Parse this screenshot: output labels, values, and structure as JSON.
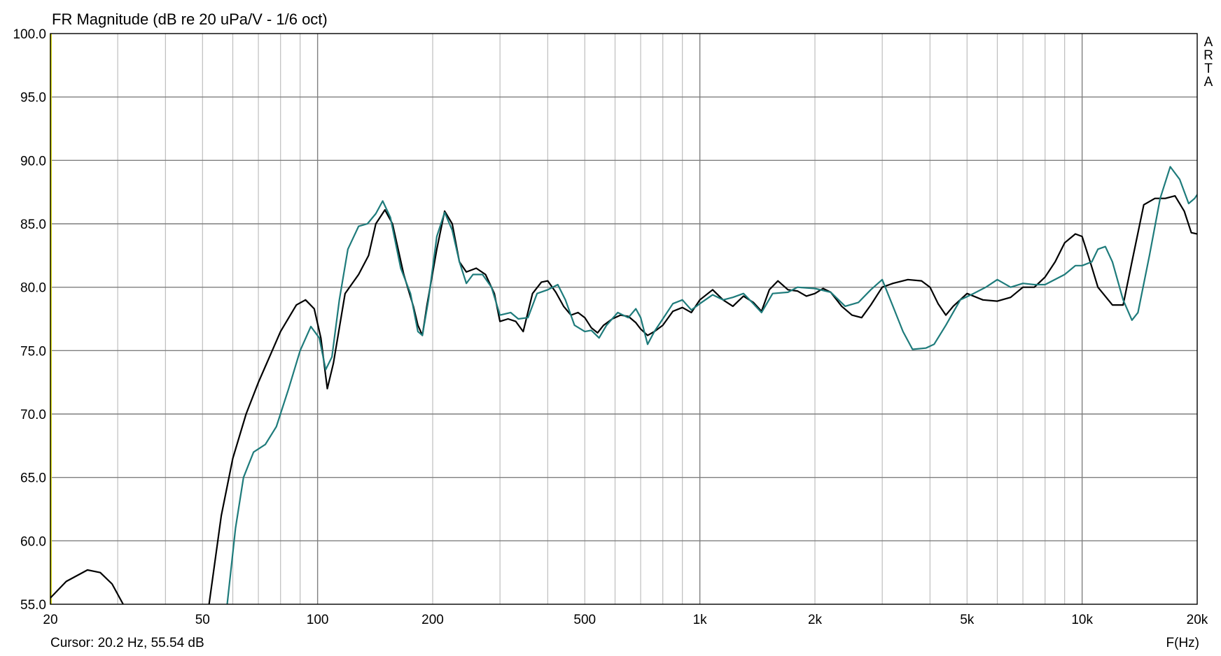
{
  "chart_data": {
    "type": "line",
    "title": "FR Magnitude (dB re 20 uPa/V - 1/6 oct)",
    "xlabel": "F(Hz)",
    "ylabel": "",
    "x_scale": "log",
    "xlim": [
      20,
      20000
    ],
    "ylim": [
      55,
      100
    ],
    "grid": true,
    "brand_letters": [
      "A",
      "R",
      "T",
      "A"
    ],
    "cursor_readout": "Cursor: 20.2 Hz, 55.54 dB",
    "x_ticks": [
      {
        "value": 20,
        "label": "20"
      },
      {
        "value": 50,
        "label": "50"
      },
      {
        "value": 100,
        "label": "100"
      },
      {
        "value": 200,
        "label": "200"
      },
      {
        "value": 500,
        "label": "500"
      },
      {
        "value": 1000,
        "label": "1k"
      },
      {
        "value": 2000,
        "label": "2k"
      },
      {
        "value": 5000,
        "label": "5k"
      },
      {
        "value": 10000,
        "label": "10k"
      },
      {
        "value": 20000,
        "label": "20k"
      }
    ],
    "y_ticks": [
      {
        "value": 100,
        "label": "100.0"
      },
      {
        "value": 95,
        "label": "95.0"
      },
      {
        "value": 90,
        "label": "90.0"
      },
      {
        "value": 85,
        "label": "85.0"
      },
      {
        "value": 80,
        "label": "80.0"
      },
      {
        "value": 75,
        "label": "75.0"
      },
      {
        "value": 70,
        "label": "70.0"
      },
      {
        "value": 65,
        "label": "65.0"
      },
      {
        "value": 60,
        "label": "60.0"
      },
      {
        "value": 55,
        "label": "55.0"
      }
    ],
    "series": [
      {
        "color": "#000000",
        "segments": [
          [
            [
              20,
              55.5
            ],
            [
              22,
              56.8
            ],
            [
              25,
              57.7
            ],
            [
              27,
              57.5
            ],
            [
              29,
              56.6
            ],
            [
              31,
              55.0
            ]
          ],
          [
            [
              52,
              55.0
            ],
            [
              56,
              62.0
            ],
            [
              60,
              66.5
            ],
            [
              65,
              70.0
            ],
            [
              70,
              72.5
            ],
            [
              80,
              76.5
            ],
            [
              88,
              78.6
            ],
            [
              93,
              79.0
            ],
            [
              98,
              78.3
            ],
            [
              102,
              76.0
            ],
            [
              106,
              72.0
            ],
            [
              110,
              74.0
            ],
            [
              118,
              79.5
            ],
            [
              128,
              81.0
            ],
            [
              136,
              82.5
            ],
            [
              142,
              85.0
            ],
            [
              150,
              86.1
            ],
            [
              157,
              85.0
            ],
            [
              168,
              81.0
            ],
            [
              178,
              78.5
            ],
            [
              183,
              77.0
            ],
            [
              188,
              76.2
            ],
            [
              193,
              78.5
            ],
            [
              205,
              83.0
            ],
            [
              215,
              86.0
            ],
            [
              225,
              85.0
            ],
            [
              235,
              82.0
            ],
            [
              245,
              81.2
            ],
            [
              260,
              81.5
            ],
            [
              275,
              81.0
            ],
            [
              290,
              79.5
            ],
            [
              300,
              77.3
            ],
            [
              315,
              77.5
            ],
            [
              330,
              77.3
            ],
            [
              345,
              76.5
            ],
            [
              365,
              79.5
            ],
            [
              385,
              80.4
            ],
            [
              400,
              80.5
            ],
            [
              420,
              79.6
            ],
            [
              440,
              78.5
            ],
            [
              460,
              77.8
            ],
            [
              480,
              78.0
            ],
            [
              500,
              77.6
            ],
            [
              520,
              76.8
            ],
            [
              540,
              76.4
            ],
            [
              560,
              77.0
            ],
            [
              590,
              77.5
            ],
            [
              620,
              77.8
            ],
            [
              650,
              77.7
            ],
            [
              680,
              77.2
            ],
            [
              700,
              76.7
            ],
            [
              730,
              76.2
            ],
            [
              760,
              76.5
            ],
            [
              800,
              77.0
            ],
            [
              850,
              78.1
            ],
            [
              900,
              78.4
            ],
            [
              950,
              78.0
            ],
            [
              1000,
              79.0
            ],
            [
              1080,
              79.8
            ],
            [
              1150,
              79.0
            ],
            [
              1220,
              78.5
            ],
            [
              1300,
              79.3
            ],
            [
              1380,
              78.8
            ],
            [
              1450,
              78.1
            ],
            [
              1520,
              79.8
            ],
            [
              1600,
              80.5
            ],
            [
              1700,
              79.8
            ],
            [
              1800,
              79.7
            ],
            [
              1900,
              79.3
            ],
            [
              2000,
              79.5
            ],
            [
              2100,
              79.9
            ],
            [
              2200,
              79.6
            ],
            [
              2350,
              78.5
            ],
            [
              2500,
              77.8
            ],
            [
              2650,
              77.6
            ],
            [
              2800,
              78.6
            ],
            [
              3000,
              80.0
            ],
            [
              3200,
              80.3
            ],
            [
              3500,
              80.6
            ],
            [
              3800,
              80.5
            ],
            [
              4000,
              80.0
            ],
            [
              4200,
              78.7
            ],
            [
              4400,
              77.8
            ],
            [
              4600,
              78.5
            ],
            [
              5000,
              79.5
            ],
            [
              5500,
              79.0
            ],
            [
              6000,
              78.9
            ],
            [
              6500,
              79.2
            ],
            [
              7000,
              80.0
            ],
            [
              7500,
              80.0
            ],
            [
              8000,
              80.8
            ],
            [
              8500,
              82.0
            ],
            [
              9000,
              83.5
            ],
            [
              9600,
              84.2
            ],
            [
              10000,
              84.0
            ],
            [
              10500,
              82.0
            ],
            [
              11000,
              80.0
            ],
            [
              12000,
              78.6
            ],
            [
              12800,
              78.6
            ],
            [
              13500,
              82.0
            ],
            [
              14500,
              86.5
            ],
            [
              15500,
              87.0
            ],
            [
              16500,
              87.0
            ],
            [
              17500,
              87.2
            ],
            [
              18500,
              86.0
            ],
            [
              19300,
              84.3
            ],
            [
              20000,
              84.2
            ]
          ]
        ]
      },
      {
        "color": "#1e7b7b",
        "segments": [
          [
            [
              58,
              55.0
            ],
            [
              61,
              61.0
            ],
            [
              64,
              65.0
            ],
            [
              68,
              67.0
            ],
            [
              73,
              67.6
            ],
            [
              78,
              69.0
            ],
            [
              84,
              72.0
            ],
            [
              90,
              75.0
            ],
            [
              96,
              76.9
            ],
            [
              101,
              76.0
            ],
            [
              105,
              73.5
            ],
            [
              109,
              74.5
            ],
            [
              114,
              79.0
            ],
            [
              120,
              83.0
            ],
            [
              128,
              84.8
            ],
            [
              135,
              85.0
            ],
            [
              142,
              85.8
            ],
            [
              148,
              86.8
            ],
            [
              155,
              85.5
            ],
            [
              165,
              81.5
            ],
            [
              175,
              79.5
            ],
            [
              183,
              76.5
            ],
            [
              188,
              76.2
            ],
            [
              195,
              79.0
            ],
            [
              205,
              84.0
            ],
            [
              215,
              85.9
            ],
            [
              225,
              84.5
            ],
            [
              235,
              82.0
            ],
            [
              245,
              80.3
            ],
            [
              255,
              81.0
            ],
            [
              270,
              81.0
            ],
            [
              285,
              80.0
            ],
            [
              300,
              77.8
            ],
            [
              320,
              78.0
            ],
            [
              335,
              77.5
            ],
            [
              355,
              77.6
            ],
            [
              375,
              79.5
            ],
            [
              400,
              79.8
            ],
            [
              425,
              80.2
            ],
            [
              445,
              79.0
            ],
            [
              470,
              77.0
            ],
            [
              500,
              76.5
            ],
            [
              520,
              76.6
            ],
            [
              545,
              76.0
            ],
            [
              570,
              77.0
            ],
            [
              610,
              78.0
            ],
            [
              650,
              77.6
            ],
            [
              680,
              78.3
            ],
            [
              700,
              77.6
            ],
            [
              730,
              75.5
            ],
            [
              760,
              76.5
            ],
            [
              800,
              77.5
            ],
            [
              850,
              78.7
            ],
            [
              900,
              79.0
            ],
            [
              950,
              78.2
            ],
            [
              1000,
              78.7
            ],
            [
              1080,
              79.4
            ],
            [
              1150,
              79.0
            ],
            [
              1220,
              79.2
            ],
            [
              1300,
              79.5
            ],
            [
              1380,
              78.7
            ],
            [
              1450,
              78.0
            ],
            [
              1550,
              79.5
            ],
            [
              1700,
              79.6
            ],
            [
              1800,
              80.0
            ],
            [
              2000,
              79.9
            ],
            [
              2200,
              79.6
            ],
            [
              2400,
              78.5
            ],
            [
              2600,
              78.8
            ],
            [
              2800,
              79.8
            ],
            [
              3000,
              80.6
            ],
            [
              3200,
              78.5
            ],
            [
              3400,
              76.5
            ],
            [
              3600,
              75.1
            ],
            [
              3900,
              75.2
            ],
            [
              4100,
              75.5
            ],
            [
              4400,
              77.0
            ],
            [
              4800,
              79.0
            ],
            [
              5200,
              79.5
            ],
            [
              5600,
              80.0
            ],
            [
              6000,
              80.6
            ],
            [
              6500,
              80.0
            ],
            [
              7000,
              80.3
            ],
            [
              7500,
              80.2
            ],
            [
              8000,
              80.2
            ],
            [
              9000,
              81.0
            ],
            [
              9600,
              81.7
            ],
            [
              10000,
              81.7
            ],
            [
              10600,
              82.0
            ],
            [
              11000,
              83.0
            ],
            [
              11500,
              83.2
            ],
            [
              12000,
              82.0
            ],
            [
              12800,
              79.0
            ],
            [
              13500,
              77.4
            ],
            [
              14000,
              78.0
            ],
            [
              15000,
              82.5
            ],
            [
              16000,
              87.0
            ],
            [
              17000,
              89.5
            ],
            [
              18000,
              88.5
            ],
            [
              19000,
              86.6
            ],
            [
              19700,
              87.0
            ],
            [
              20000,
              87.3
            ]
          ]
        ]
      }
    ]
  }
}
